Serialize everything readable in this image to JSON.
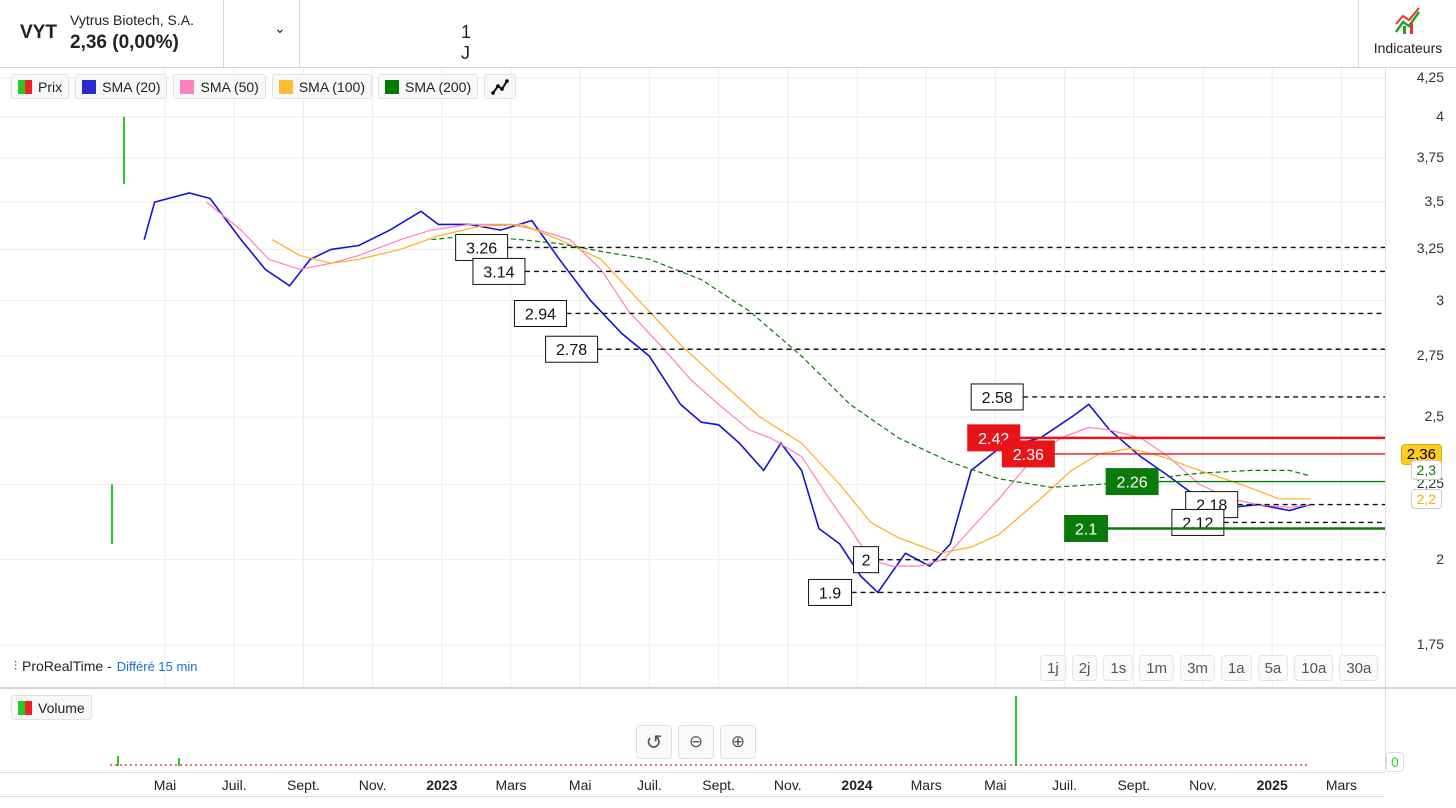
{
  "header": {
    "symbol": "VYT",
    "name": "Vytrus Biotech, S.A.",
    "price": "2,36 (0,00%)",
    "period": "1 J",
    "indicators_label": "Indicateurs"
  },
  "legend": [
    {
      "label": "Prix",
      "color": "#22cc22"
    },
    {
      "label": "SMA (20)",
      "color": "#2a2acc"
    },
    {
      "label": "SMA (50)",
      "color": "#ff82c0"
    },
    {
      "label": "SMA (100)",
      "color": "#ffbb33"
    },
    {
      "label": "SMA (200)",
      "color": "#007a00"
    }
  ],
  "price_axis": [
    "4,25",
    "4",
    "3,75",
    "3,5",
    "3,25",
    "3",
    "2,75",
    "2,5",
    "2,25",
    "2",
    "1,75"
  ],
  "price_pills": {
    "last": "2,36",
    "sma200": "2,3",
    "sma100": "2,2",
    "hidden_tick": "2,25"
  },
  "footer": {
    "source": "ProRealTime -",
    "delay": "Différé 15 min"
  },
  "timeframes": [
    "1j",
    "2j",
    "1s",
    "1m",
    "3m",
    "1a",
    "5a",
    "10a",
    "30a"
  ],
  "volume": {
    "label": "Volume",
    "axis_zero": "0"
  },
  "dates": [
    {
      "t": 4,
      "label": "Mai"
    },
    {
      "t": 6,
      "label": "Juil."
    },
    {
      "t": 8,
      "label": "Sept."
    },
    {
      "t": 10,
      "label": "Nov."
    },
    {
      "t": 12,
      "label": "2023",
      "bold": true
    },
    {
      "t": 14,
      "label": "Mars"
    },
    {
      "t": 16,
      "label": "Mai"
    },
    {
      "t": 18,
      "label": "Juil."
    },
    {
      "t": 20,
      "label": "Sept."
    },
    {
      "t": 22,
      "label": "Nov."
    },
    {
      "t": 24,
      "label": "2024",
      "bold": true
    },
    {
      "t": 26,
      "label": "Mars"
    },
    {
      "t": 28,
      "label": "Mai"
    },
    {
      "t": 30,
      "label": "Juil."
    },
    {
      "t": 32,
      "label": "Sept."
    },
    {
      "t": 34,
      "label": "Nov."
    },
    {
      "t": 36,
      "label": "2025",
      "bold": true
    },
    {
      "t": 38,
      "label": "Mars"
    }
  ],
  "chart_data": {
    "type": "line",
    "xunit": "months since Jan 2022",
    "yscale": "log",
    "ylim": [
      1.75,
      4.25
    ],
    "series": [
      {
        "name": "SMA (20)",
        "color": "#1414d4",
        "dash": false,
        "points": [
          [
            3.4,
            3.3
          ],
          [
            3.7,
            3.5
          ],
          [
            4.7,
            3.55
          ],
          [
            5.3,
            3.52
          ],
          [
            6.2,
            3.3
          ],
          [
            6.9,
            3.15
          ],
          [
            7.6,
            3.07
          ],
          [
            8.2,
            3.2
          ],
          [
            8.8,
            3.25
          ],
          [
            9.6,
            3.27
          ],
          [
            10.5,
            3.35
          ],
          [
            11.4,
            3.45
          ],
          [
            11.9,
            3.38
          ],
          [
            12.8,
            3.38
          ],
          [
            13.7,
            3.35
          ],
          [
            14.6,
            3.4
          ],
          [
            15.4,
            3.2
          ],
          [
            16.3,
            3.0
          ],
          [
            17.2,
            2.85
          ],
          [
            18.0,
            2.75
          ],
          [
            18.9,
            2.55
          ],
          [
            19.5,
            2.48
          ],
          [
            20.0,
            2.47
          ],
          [
            20.6,
            2.4
          ],
          [
            21.3,
            2.3
          ],
          [
            21.8,
            2.4
          ],
          [
            22.4,
            2.3
          ],
          [
            22.9,
            2.1
          ],
          [
            23.5,
            2.05
          ],
          [
            24.1,
            1.95
          ],
          [
            24.6,
            1.9
          ],
          [
            25.4,
            2.02
          ],
          [
            26.1,
            1.98
          ],
          [
            26.7,
            2.05
          ],
          [
            27.3,
            2.3
          ],
          [
            28.1,
            2.38
          ],
          [
            29.3,
            2.42
          ],
          [
            30.2,
            2.5
          ],
          [
            30.7,
            2.55
          ],
          [
            31.3,
            2.45
          ],
          [
            32.2,
            2.35
          ],
          [
            33.0,
            2.28
          ],
          [
            33.9,
            2.2
          ],
          [
            34.8,
            2.17
          ],
          [
            35.6,
            2.18
          ],
          [
            36.5,
            2.16
          ],
          [
            37.1,
            2.18
          ]
        ]
      },
      {
        "name": "SMA (50)",
        "color": "#ff7fbf",
        "dash": false,
        "points": [
          [
            5.2,
            3.5
          ],
          [
            6.2,
            3.35
          ],
          [
            7.0,
            3.2
          ],
          [
            7.9,
            3.15
          ],
          [
            8.8,
            3.18
          ],
          [
            9.6,
            3.22
          ],
          [
            10.8,
            3.3
          ],
          [
            11.7,
            3.35
          ],
          [
            12.8,
            3.38
          ],
          [
            14.0,
            3.38
          ],
          [
            14.8,
            3.35
          ],
          [
            15.7,
            3.3
          ],
          [
            16.6,
            3.15
          ],
          [
            17.4,
            2.95
          ],
          [
            18.3,
            2.8
          ],
          [
            19.2,
            2.65
          ],
          [
            20.0,
            2.55
          ],
          [
            20.9,
            2.45
          ],
          [
            21.5,
            2.42
          ],
          [
            22.4,
            2.35
          ],
          [
            23.2,
            2.2
          ],
          [
            23.8,
            2.1
          ],
          [
            24.4,
            2.0
          ],
          [
            25.0,
            1.98
          ],
          [
            25.8,
            1.98
          ],
          [
            26.5,
            2.0
          ],
          [
            27.3,
            2.1
          ],
          [
            28.1,
            2.2
          ],
          [
            29.0,
            2.33
          ],
          [
            29.9,
            2.42
          ],
          [
            30.7,
            2.46
          ],
          [
            31.3,
            2.45
          ],
          [
            32.2,
            2.42
          ],
          [
            33.0,
            2.35
          ],
          [
            33.9,
            2.25
          ],
          [
            34.8,
            2.2
          ],
          [
            35.6,
            2.18
          ],
          [
            36.5,
            2.17
          ],
          [
            37.1,
            2.18
          ]
        ]
      },
      {
        "name": "SMA (100)",
        "color": "#ffae1a",
        "dash": false,
        "points": [
          [
            7.1,
            3.3
          ],
          [
            7.9,
            3.22
          ],
          [
            8.8,
            3.18
          ],
          [
            9.6,
            3.2
          ],
          [
            10.8,
            3.25
          ],
          [
            11.9,
            3.32
          ],
          [
            13.1,
            3.37
          ],
          [
            14.3,
            3.38
          ],
          [
            15.4,
            3.3
          ],
          [
            16.6,
            3.2
          ],
          [
            17.7,
            3.0
          ],
          [
            18.9,
            2.8
          ],
          [
            20.0,
            2.65
          ],
          [
            21.2,
            2.5
          ],
          [
            22.4,
            2.4
          ],
          [
            23.5,
            2.25
          ],
          [
            24.4,
            2.12
          ],
          [
            25.2,
            2.07
          ],
          [
            26.4,
            2.02
          ],
          [
            27.3,
            2.04
          ],
          [
            28.1,
            2.08
          ],
          [
            29.3,
            2.2
          ],
          [
            30.2,
            2.3
          ],
          [
            31.0,
            2.36
          ],
          [
            31.9,
            2.38
          ],
          [
            32.8,
            2.35
          ],
          [
            33.9,
            2.3
          ],
          [
            35.1,
            2.25
          ],
          [
            36.2,
            2.2
          ],
          [
            37.1,
            2.2
          ]
        ]
      },
      {
        "name": "SMA (200)",
        "color": "#0a7a0a",
        "dash": true,
        "points": [
          [
            11.7,
            3.3
          ],
          [
            12.8,
            3.32
          ],
          [
            14.3,
            3.3
          ],
          [
            15.4,
            3.28
          ],
          [
            16.6,
            3.24
          ],
          [
            18.0,
            3.2
          ],
          [
            19.5,
            3.1
          ],
          [
            20.9,
            2.95
          ],
          [
            22.4,
            2.75
          ],
          [
            23.8,
            2.55
          ],
          [
            25.2,
            2.42
          ],
          [
            26.7,
            2.33
          ],
          [
            28.1,
            2.27
          ],
          [
            29.6,
            2.24
          ],
          [
            31.0,
            2.25
          ],
          [
            32.5,
            2.27
          ],
          [
            33.9,
            2.29
          ],
          [
            35.4,
            2.3
          ],
          [
            36.5,
            2.3
          ],
          [
            37.1,
            2.28
          ]
        ]
      }
    ],
    "levels": [
      {
        "value": 3.26,
        "label": "3.26",
        "kind": "dashed",
        "t": 12.4
      },
      {
        "value": 3.14,
        "label": "3.14",
        "kind": "dashed",
        "t": 12.9
      },
      {
        "value": 2.94,
        "label": "2.94",
        "kind": "dashed",
        "t": 14.1
      },
      {
        "value": 2.78,
        "label": "2.78",
        "kind": "dashed",
        "t": 15.0
      },
      {
        "value": 2.58,
        "label": "2.58",
        "kind": "dashed",
        "t": 27.3
      },
      {
        "value": 2.42,
        "label": "2.42",
        "kind": "red",
        "t": 27.2
      },
      {
        "value": 2.36,
        "label": "2.36",
        "kind": "red",
        "t": 28.2
      },
      {
        "value": 2.26,
        "label": "2.26",
        "kind": "green",
        "t": 31.2
      },
      {
        "value": 2.18,
        "label": "2.18",
        "kind": "dashed",
        "t": 33.5
      },
      {
        "value": 2.12,
        "label": "2.12",
        "kind": "dashed",
        "t": 33.1
      },
      {
        "value": 2.1,
        "label": "2.1",
        "kind": "green",
        "t": 30.0
      },
      {
        "value": 2.0,
        "label": "2",
        "kind": "dashed",
        "t": 23.9
      },
      {
        "value": 1.9,
        "label": "1.9",
        "kind": "dashed",
        "t": 22.6
      }
    ]
  }
}
